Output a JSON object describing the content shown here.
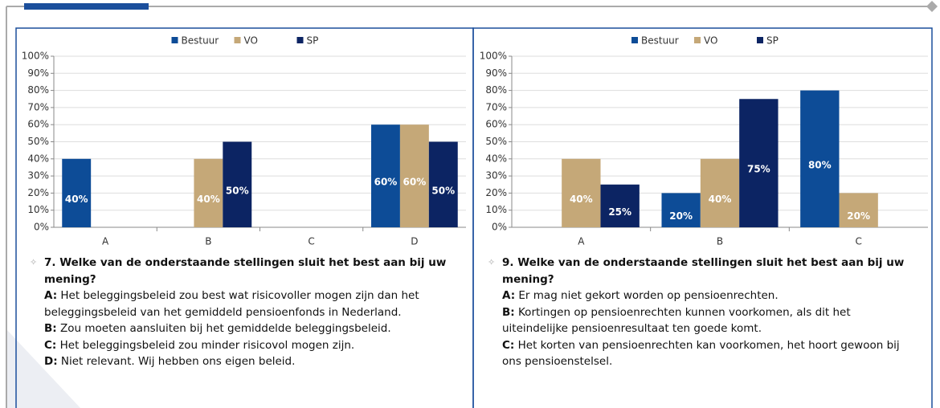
{
  "chart_data": [
    {
      "type": "bar",
      "categories": [
        "A",
        "B",
        "C",
        "D"
      ],
      "series": [
        {
          "name": "Bestuur",
          "color": "#0d4c97",
          "values": [
            40,
            0,
            0,
            60
          ],
          "value_labels": [
            "40%",
            null,
            null,
            "60%"
          ]
        },
        {
          "name": "VO",
          "color": "#c5a878",
          "values": [
            0,
            40,
            0,
            60
          ],
          "value_labels": [
            null,
            "40%",
            null,
            "60%"
          ]
        },
        {
          "name": "SP",
          "color": "#0c2463",
          "values": [
            0,
            50,
            0,
            50
          ],
          "value_labels": [
            null,
            "50%",
            null,
            "50%"
          ]
        }
      ],
      "ylim": [
        0,
        100
      ],
      "yticks": [
        {
          "value": 0,
          "label": "0%"
        },
        {
          "value": 10,
          "label": "10%"
        },
        {
          "value": 20,
          "label": "20%"
        },
        {
          "value": 30,
          "label": "30%"
        },
        {
          "value": 40,
          "label": "40%"
        },
        {
          "value": 50,
          "label": "50%"
        },
        {
          "value": 60,
          "label": "60%"
        },
        {
          "value": 70,
          "label": "70%"
        },
        {
          "value": 80,
          "label": "80%"
        },
        {
          "value": 90,
          "label": "90%"
        },
        {
          "value": 100,
          "label": "100%"
        }
      ],
      "legend": "top",
      "question": "7. Welke van de onderstaande  stellingen sluit het best aan bij uw mening?",
      "options": [
        {
          "key": "A:",
          "text": "Het beleggingsbeleid zou best wat risicovoller mogen zijn dan het beleggingsbeleid van het gemiddeld pensioenfonds in Nederland."
        },
        {
          "key": "B:",
          "text": "Zou moeten aansluiten bij het  gemiddelde beleggingsbeleid."
        },
        {
          "key": "C:",
          "text": "Het beleggingsbeleid zou minder risicovol mogen zijn."
        },
        {
          "key": "D:",
          "text": "Niet relevant. Wij hebben ons eigen beleid."
        }
      ]
    },
    {
      "type": "bar",
      "categories": [
        "A",
        "B",
        "C"
      ],
      "series": [
        {
          "name": "Bestuur",
          "color": "#0d4c97",
          "values": [
            0,
            20,
            80
          ],
          "value_labels": [
            null,
            "20%",
            "80%"
          ]
        },
        {
          "name": "VO",
          "color": "#c5a878",
          "values": [
            40,
            40,
            20
          ],
          "value_labels": [
            "40%",
            "40%",
            "20%"
          ]
        },
        {
          "name": "SP",
          "color": "#0c2463",
          "values": [
            25,
            75,
            0
          ],
          "value_labels": [
            "25%",
            "75%",
            null
          ]
        }
      ],
      "ylim": [
        0,
        100
      ],
      "yticks": [
        {
          "value": 0,
          "label": "0%"
        },
        {
          "value": 10,
          "label": "10%"
        },
        {
          "value": 20,
          "label": "20%"
        },
        {
          "value": 30,
          "label": "30%"
        },
        {
          "value": 40,
          "label": "40%"
        },
        {
          "value": 50,
          "label": "50%"
        },
        {
          "value": 60,
          "label": "60%"
        },
        {
          "value": 70,
          "label": "70%"
        },
        {
          "value": 80,
          "label": "80%"
        },
        {
          "value": 90,
          "label": "90%"
        },
        {
          "value": 100,
          "label": "100%"
        }
      ],
      "legend": "top",
      "question": "9. Welke van de onderstaande  stellingen sluit het best aan bij uw mening?",
      "options": [
        {
          "key": "A:",
          "text": "Er mag niet gekort worden op pensioenrechten."
        },
        {
          "key": "B:",
          "text": "Kortingen op pensioenrechten kunnen voorkomen, als dit het uiteindelijke  pensioenresultaat ten goede komt."
        },
        {
          "key": "C:",
          "text": "Het korten van pensioenrechten kan voorkomen, het hoort gewoon bij ons pensioenstelsel."
        }
      ]
    }
  ]
}
